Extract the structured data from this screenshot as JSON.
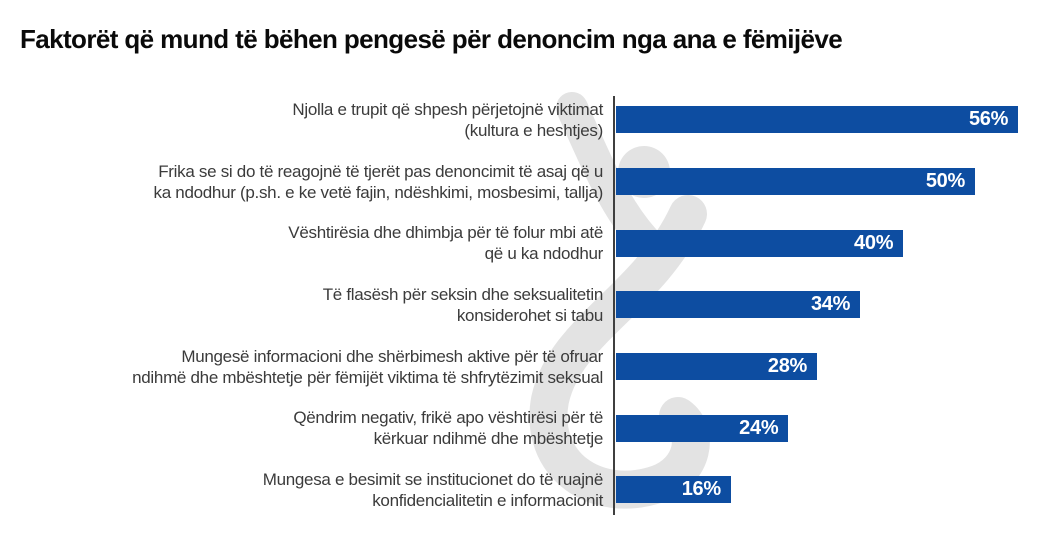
{
  "title": "Faktorët që mund të bëhen pengesë për denoncim nga ana e fëmijëve",
  "colors": {
    "bar": "#0d4da1",
    "axis": "#3f3f3f",
    "label_text": "#3b3b3b",
    "value_text": "#ffffff",
    "title_text": "#0a0a0a",
    "watermark": "#e3e3e3",
    "background": "#ffffff"
  },
  "watermark_icon": "stylized-child-figure-watermark",
  "chart_data": {
    "type": "bar",
    "orientation": "horizontal",
    "unit": "%",
    "title": "Faktorët që mund të bëhen pengesë për denoncim nga ana e fëmijëve",
    "xlabel": "",
    "ylabel": "",
    "xlim": [
      0,
      60
    ],
    "grid": false,
    "legend": false,
    "value_labels_position": "inside-end",
    "categories": [
      "Njolla e trupit që shpesh përjetojnë viktimat (kultura e heshtjes)",
      "Frika se si do të reagojnë të tjerët pas denoncimit të asaj që u ka ndodhur (p.sh. e ke vetë fajin, ndëshkimi, mosbesimi, tallja)",
      "Vështirësia dhe dhimbja për të folur mbi atë që u ka ndodhur",
      "Të flasësh për seksin dhe seksualitetin konsiderohet si tabu",
      "Mungesë informacioni dhe shërbimesh aktive për të ofruar ndihmë dhe mbështetje për fëmijët viktima të shfrytëzimit seksual",
      "Qëndrim negativ, frikë apo vështirësi për të kërkuar ndihmë dhe mbështetje",
      "Mungesa e besimit se institucionet do të ruajnë konfidencialitetin e informacionit"
    ],
    "label_lines": [
      [
        "Njolla e trupit që shpesh përjetojnë viktimat",
        "(kultura e heshtjes)"
      ],
      [
        "Frika se si do të reagojnë të tjerët pas denoncimit të asaj që u",
        "ka ndodhur (p.sh. e ke vetë fajin, ndëshkimi, mosbesimi, tallja)"
      ],
      [
        "Vështirësia dhe dhimbja për të folur mbi atë",
        "që u ka ndodhur"
      ],
      [
        "Të flasësh për seksin dhe seksualitetin",
        "konsiderohet si tabu"
      ],
      [
        "Mungesë informacioni dhe shërbimesh aktive për të ofruar",
        "ndihmë dhe mbështetje për fëmijët viktima të shfrytëzimit seksual"
      ],
      [
        "Qëndrim negativ, frikë apo vështirësi për të",
        "kërkuar ndihmë dhe mbështetje"
      ],
      [
        "Mungesa e besimit se institucionet do të ruajnë",
        "konfidencialitetin e informacionit"
      ]
    ],
    "values": [
      56,
      50,
      40,
      34,
      28,
      24,
      16
    ],
    "value_labels": [
      "56%",
      "50%",
      "40%",
      "34%",
      "28%",
      "24%",
      "16%"
    ]
  }
}
